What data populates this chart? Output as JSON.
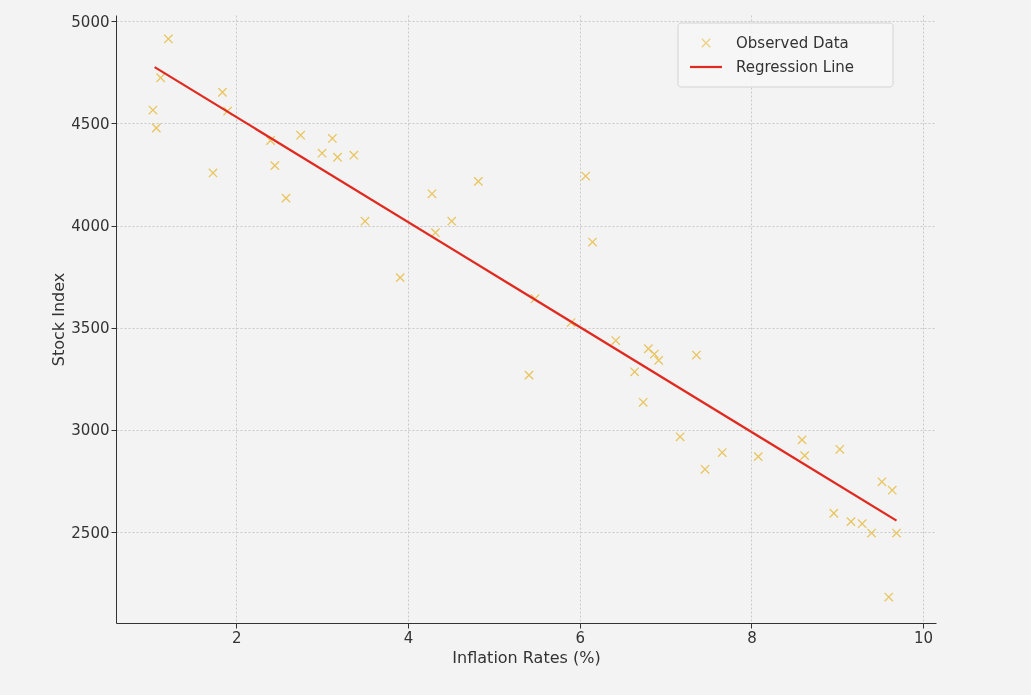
{
  "chart_data": {
    "type": "scatter",
    "xlabel": "Inflation Rates (%)",
    "ylabel": "Stock Index",
    "xlim": [
      0.6,
      10.15
    ],
    "ylim": [
      2055,
      5030
    ],
    "xticks": [
      2,
      4,
      6,
      8,
      10
    ],
    "yticks": [
      2500,
      3000,
      3500,
      4000,
      4500,
      5000
    ],
    "grid": true,
    "legend": "top right",
    "series": [
      {
        "name": "Observed Data",
        "marker": "cross",
        "color": "#e8c050",
        "x": [
          1.21,
          1.12,
          1.03,
          1.07,
          1.84,
          1.9,
          1.73,
          2.4,
          2.45,
          2.58,
          2.75,
          3.0,
          3.12,
          3.18,
          3.37,
          3.5,
          3.91,
          4.28,
          4.32,
          4.51,
          4.82,
          6.07,
          6.15,
          5.48,
          5.9,
          5.41,
          6.42,
          6.8,
          6.87,
          6.92,
          6.64,
          6.74,
          7.36,
          7.17,
          7.46,
          7.66,
          8.08,
          8.59,
          8.62,
          9.03,
          9.52,
          9.64,
          8.96,
          9.16,
          9.29,
          9.4,
          9.69,
          9.6
        ],
        "values": [
          4913,
          4723,
          4565,
          4477,
          4652,
          4560,
          4257,
          4416,
          4293,
          4134,
          4442,
          4354,
          4426,
          4334,
          4344,
          4021,
          3745,
          4155,
          3965,
          4021,
          4216,
          4242,
          3919,
          3642,
          3525,
          3268,
          3437,
          3397,
          3371,
          3340,
          3284,
          3135,
          3366,
          2966,
          2807,
          2889,
          2869,
          2951,
          2874,
          2905,
          2746,
          2705,
          2592,
          2551,
          2541,
          2495,
          2495,
          2182
        ]
      },
      {
        "name": "Regression Line",
        "type": "line",
        "line_style": "solid",
        "color": "#e02a20",
        "x": [
          1.05,
          9.69
        ],
        "values": [
          4775,
          2556
        ]
      }
    ]
  }
}
